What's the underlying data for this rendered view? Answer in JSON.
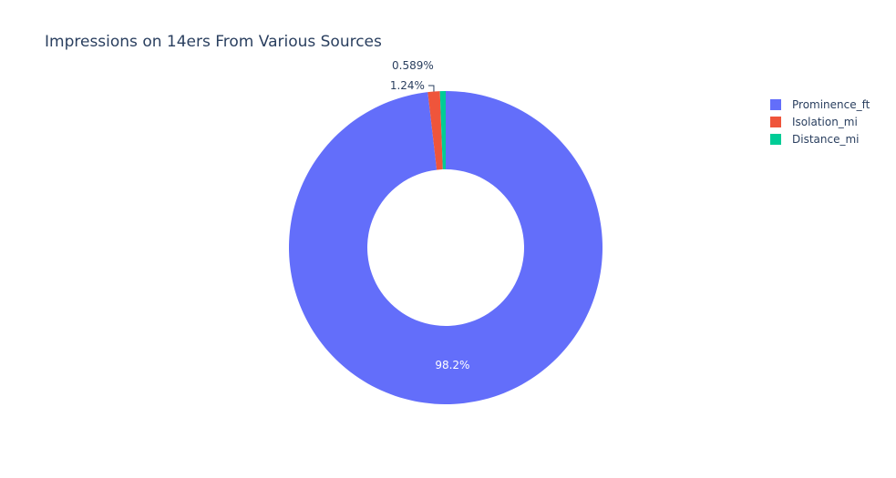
{
  "chart_data": {
    "type": "pie",
    "hole": true,
    "title": "Impressions on 14ers From Various Sources",
    "slices": [
      {
        "label": "Prominence_ft",
        "percent": 98.2,
        "percent_text": "98.2%",
        "color": "#636efa"
      },
      {
        "label": "Isolation_mi",
        "percent": 1.24,
        "percent_text": "1.24%",
        "color": "#ef553b"
      },
      {
        "label": "Distance_mi",
        "percent": 0.589,
        "percent_text": "0.589%",
        "color": "#00cc96"
      }
    ],
    "legend_position": "top-right"
  }
}
